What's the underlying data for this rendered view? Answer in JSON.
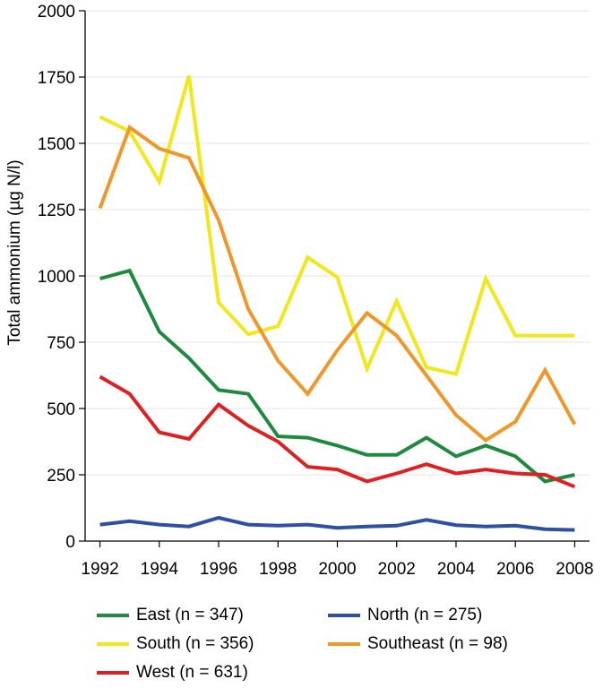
{
  "chart_data": {
    "type": "line",
    "ylabel": "Total ammonium (µg N/l)",
    "xlabel": "",
    "x": [
      1992,
      1993,
      1994,
      1995,
      1996,
      1997,
      1998,
      1999,
      2000,
      2001,
      2002,
      2003,
      2004,
      2005,
      2006,
      2007,
      2008
    ],
    "xticks": [
      "1992",
      "1994",
      "1996",
      "1998",
      "2000",
      "2002",
      "2004",
      "2006",
      "2008"
    ],
    "yticks": [
      "0",
      "250",
      "500",
      "750",
      "1000",
      "1250",
      "1500",
      "1750",
      "2000"
    ],
    "ylim": [
      0,
      2000
    ],
    "grid": "horizontal",
    "legend_position": "bottom",
    "series": [
      {
        "name": "East (n = 347)",
        "color": "#1e8a3e",
        "values": [
          990,
          1020,
          790,
          690,
          570,
          555,
          395,
          390,
          360,
          325,
          325,
          390,
          320,
          360,
          320,
          225,
          250
        ]
      },
      {
        "name": "North (n = 275)",
        "color": "#2e4fa6",
        "values": [
          62,
          75,
          62,
          55,
          88,
          62,
          58,
          62,
          50,
          55,
          58,
          80,
          60,
          55,
          58,
          45,
          42
        ]
      },
      {
        "name": "South (n = 356)",
        "color": "#f0e81a",
        "values": [
          1600,
          1545,
          1355,
          1755,
          900,
          780,
          810,
          1070,
          995,
          650,
          905,
          655,
          630,
          990,
          775,
          775,
          775
        ]
      },
      {
        "name": "Southeast (n = 98)",
        "color": "#f0972a",
        "values": [
          1255,
          1560,
          1480,
          1445,
          1210,
          875,
          680,
          555,
          720,
          860,
          775,
          625,
          475,
          380,
          450,
          645,
          440
        ]
      },
      {
        "name": "West (n = 631)",
        "color": "#e02020",
        "values": [
          620,
          555,
          410,
          385,
          515,
          435,
          375,
          280,
          270,
          225,
          255,
          290,
          255,
          270,
          255,
          250,
          205
        ]
      }
    ]
  }
}
